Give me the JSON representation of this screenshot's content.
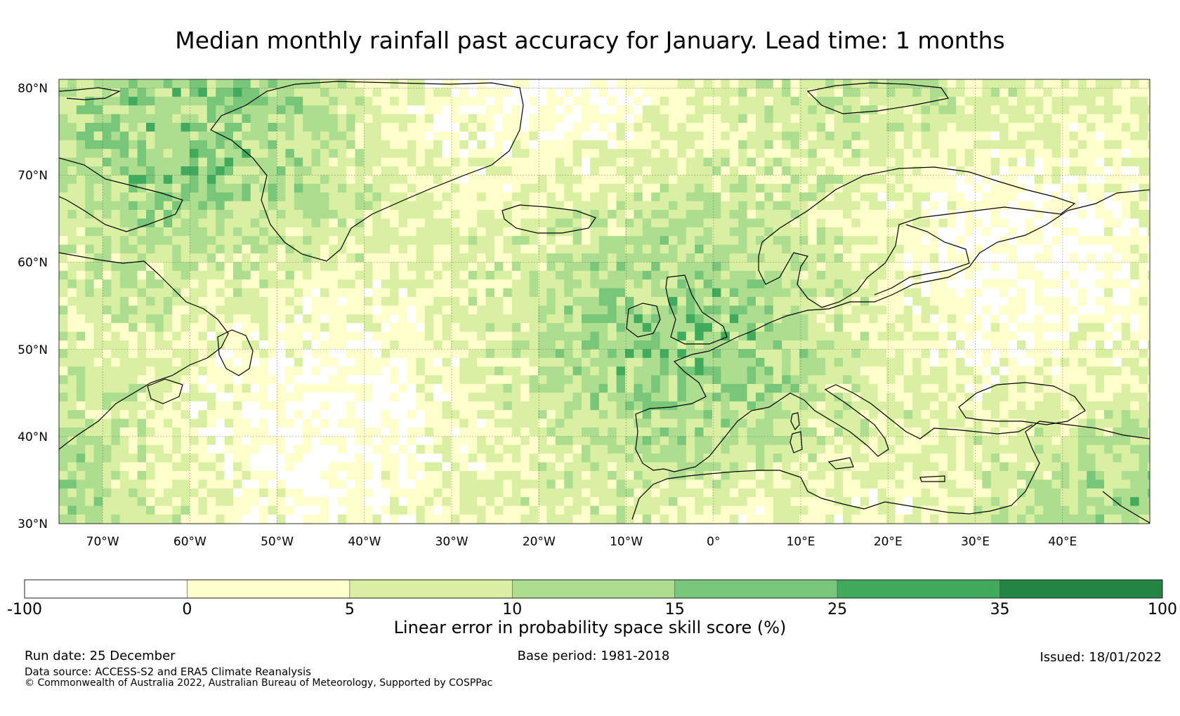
{
  "title": "Median monthly rainfall past accuracy for January. Lead time: 1 months",
  "map": {
    "lat_labels": [
      "80°N",
      "70°N",
      "60°N",
      "50°N",
      "40°N",
      "30°N"
    ],
    "lat_values": [
      80,
      70,
      60,
      50,
      40,
      30
    ],
    "lon_labels": [
      "70°W",
      "60°W",
      "50°W",
      "40°W",
      "30°W",
      "20°W",
      "10°W",
      "0°",
      "10°E",
      "20°E",
      "30°E",
      "40°E"
    ],
    "lon_values": [
      -70,
      -60,
      -50,
      -40,
      -30,
      -20,
      -10,
      0,
      10,
      20,
      30,
      40
    ],
    "lon_range": [
      -75,
      50
    ],
    "lat_range": [
      30,
      81
    ]
  },
  "colorbar": {
    "boundaries": [
      "-100",
      "0",
      "5",
      "10",
      "15",
      "25",
      "35",
      "100"
    ],
    "colors": [
      "#ffffff",
      "#ffffcc",
      "#d9f0a3",
      "#addd8e",
      "#78c679",
      "#41ab5d",
      "#238443"
    ],
    "title": "Linear error in probability space skill score (%)"
  },
  "footer": {
    "run_date": "Run date: 25 December",
    "base_period": "Base period: 1981-2018",
    "issued": "Issued: 18/01/2022",
    "data_source": "Data source: ACCESS-S2 and ERA5 Climate Reanalysis",
    "copyright": "© Commonwealth of Australia 2022, Australian Bureau of Meteorology, Supported by COSPPac"
  }
}
